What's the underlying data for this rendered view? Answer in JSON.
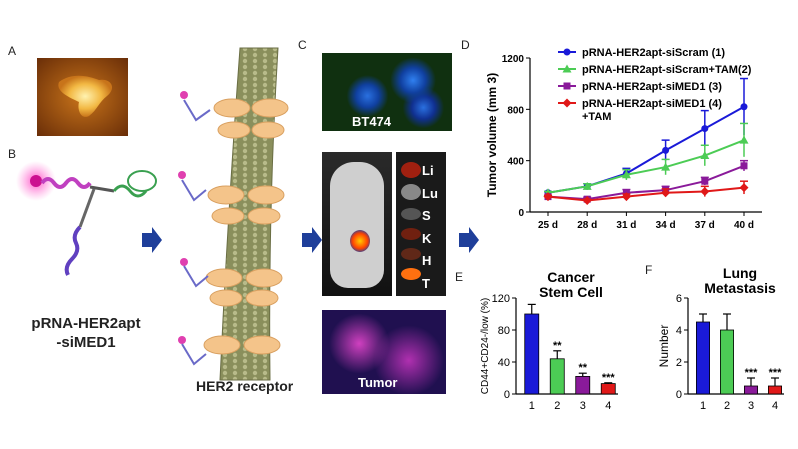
{
  "panels": {
    "A": "A",
    "B": "B",
    "C": "C",
    "D": "D",
    "E": "E",
    "F": "F"
  },
  "texts": {
    "construct_line1": "pRNA-HER2apt",
    "construct_line2": "-siMED1",
    "receptor": "HER2 receptor",
    "cell_line": "BT474",
    "tumor": "Tumor"
  },
  "organs": [
    "Li",
    "Lu",
    "S",
    "K",
    "H",
    "T"
  ],
  "colors": {
    "blue": "#1a1ad8",
    "green": "#4ccc55",
    "purple": "#8a1a9a",
    "red": "#e01818",
    "arrow": "#1f3f9a"
  },
  "chart_data": [
    {
      "type": "line",
      "panel": "D",
      "ylabel": "Tumor volume (mm 3)",
      "categories": [
        "25 d",
        "28 d",
        "31 d",
        "34 d",
        "37 d",
        "40 d"
      ],
      "ylim": [
        0,
        1200
      ],
      "yticks": [
        0,
        400,
        800,
        1200
      ],
      "series": [
        {
          "name": "pRNA-HER2apt-siScram (1)",
          "color": "#1a1ad8",
          "values": [
            150,
            200,
            300,
            480,
            650,
            820
          ],
          "errors": [
            10,
            20,
            40,
            80,
            140,
            220
          ]
        },
        {
          "name": "pRNA-HER2apt-siScram+TAM(2)",
          "color": "#4ccc55",
          "values": [
            150,
            200,
            290,
            350,
            440,
            560
          ],
          "errors": [
            10,
            20,
            40,
            60,
            80,
            130
          ]
        },
        {
          "name": "pRNA-HER2apt-siMED1 (3)",
          "color": "#8a1a9a",
          "values": [
            120,
            100,
            150,
            170,
            240,
            360
          ],
          "errors": [
            10,
            15,
            25,
            30,
            30,
            40
          ]
        },
        {
          "name": "pRNA-HER2apt-siMED1 (4)\n+TAM",
          "color": "#e01818",
          "values": [
            120,
            90,
            120,
            150,
            160,
            190
          ],
          "errors": [
            10,
            10,
            20,
            30,
            40,
            50
          ]
        }
      ]
    },
    {
      "type": "bar",
      "panel": "E",
      "title": "Cancer Stem Cell",
      "ylabel": "CD44+CD24-/low (%)",
      "categories": [
        "1",
        "2",
        "3",
        "4"
      ],
      "values": [
        100,
        44,
        22,
        13
      ],
      "errors": [
        12,
        10,
        4,
        1
      ],
      "significance": [
        "",
        "**",
        "**",
        "***"
      ],
      "colors": [
        "#1a1ad8",
        "#4ccc55",
        "#8a1a9a",
        "#e01818"
      ],
      "ylim": [
        0,
        120
      ],
      "yticks": [
        0,
        40,
        80,
        120
      ]
    },
    {
      "type": "bar",
      "panel": "F",
      "title": "Lung Metastasis",
      "ylabel": "Number",
      "categories": [
        "1",
        "2",
        "3",
        "4"
      ],
      "values": [
        4.5,
        4.0,
        0.5,
        0.5
      ],
      "errors": [
        0.5,
        1.0,
        0.5,
        0.5
      ],
      "significance": [
        "",
        "",
        "***",
        "***"
      ],
      "colors": [
        "#1a1ad8",
        "#4ccc55",
        "#8a1a9a",
        "#e01818"
      ],
      "ylim": [
        0,
        6
      ],
      "yticks": [
        0,
        2,
        4,
        6
      ]
    }
  ]
}
